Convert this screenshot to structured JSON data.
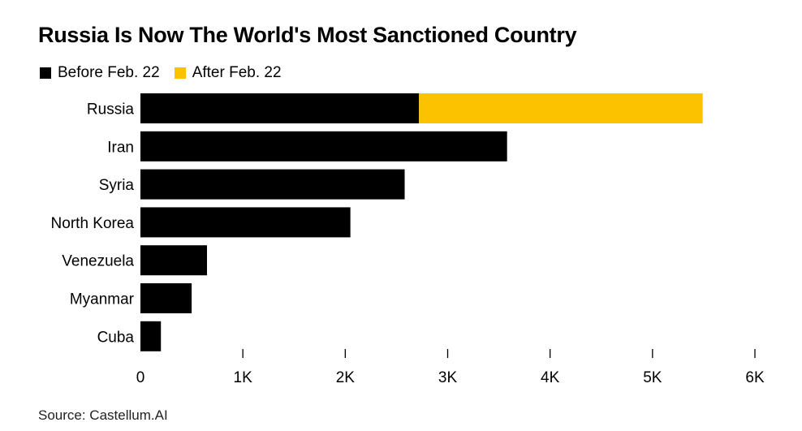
{
  "chart_data": {
    "type": "bar",
    "orientation": "horizontal",
    "stacked": true,
    "title": "Russia Is Now The World's Most Sanctioned Country",
    "categories": [
      "Russia",
      "Iran",
      "Syria",
      "North Korea",
      "Venezuela",
      "Myanmar",
      "Cuba"
    ],
    "series": [
      {
        "name": "Before Feb. 22",
        "color": "#000000",
        "values": [
          2720,
          3580,
          2580,
          2050,
          650,
          500,
          200
        ]
      },
      {
        "name": "After Feb. 22",
        "color": "#fcc200",
        "values": [
          2770,
          0,
          0,
          0,
          0,
          0,
          0
        ]
      }
    ],
    "xlim": [
      0,
      6000
    ],
    "xticks": [
      0,
      1000,
      2000,
      3000,
      4000,
      5000,
      6000
    ],
    "xtick_labels": [
      "0",
      "1K",
      "2K",
      "3K",
      "4K",
      "5K",
      "6K"
    ],
    "xlabel": "",
    "ylabel": "",
    "grid": false,
    "legend_position": "top-left",
    "source": "Source: Castellum.AI"
  }
}
